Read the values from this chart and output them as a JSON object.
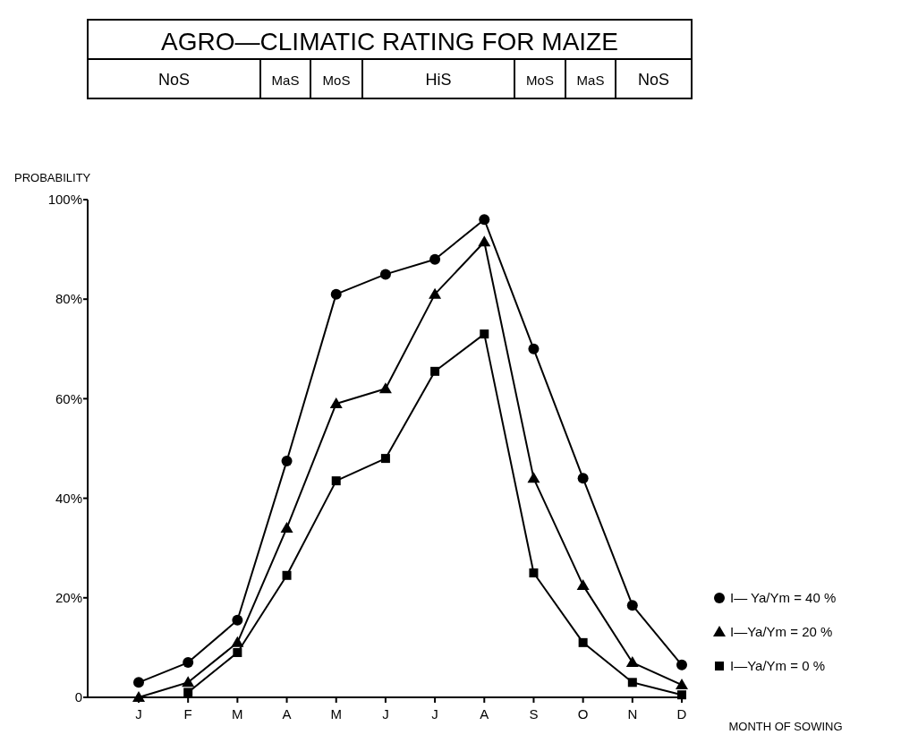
{
  "chart_data": {
    "type": "line",
    "title": "AGRO—CLIMATIC RATING FOR MAIZE",
    "annotations": [
      "NoS",
      "MaS",
      "MoS",
      "HiS",
      "MoS",
      "MaS",
      "NoS"
    ],
    "categories": [
      "J",
      "F",
      "M",
      "A",
      "M",
      "J",
      "J",
      "A",
      "S",
      "O",
      "N",
      "D"
    ],
    "series": [
      {
        "name": "I— Ya/Ym = 40 %",
        "color": "#000000",
        "marker": "circle",
        "values": [
          3,
          7,
          15.5,
          47.5,
          81,
          85,
          88,
          96,
          70,
          44,
          18.5,
          6.5
        ]
      },
      {
        "name": "I—Ya/Ym = 20 %",
        "color": "#000000",
        "marker": "triangle",
        "values": [
          0,
          3,
          11,
          34,
          59,
          62,
          81,
          91.5,
          44,
          22.5,
          7,
          2.5
        ]
      },
      {
        "name": "I—Ya/Ym = 0 %",
        "color": "#000000",
        "marker": "square",
        "values": [
          null,
          1,
          9,
          24.5,
          43.5,
          48,
          65.5,
          73,
          25,
          11,
          3,
          0.5
        ]
      }
    ],
    "ylabel": "PROBABILITY",
    "xlabel": "MONTH OF SOWING",
    "ylim": [
      0,
      100
    ],
    "yticks": [
      {
        "value": 0,
        "label": "0"
      },
      {
        "value": 20,
        "label": "20%"
      },
      {
        "value": 40,
        "label": "40%"
      },
      {
        "value": 60,
        "label": "60%"
      },
      {
        "value": 80,
        "label": "80%"
      },
      {
        "value": 100,
        "label": "100%"
      }
    ],
    "legend": "bottom right",
    "grid": false
  }
}
